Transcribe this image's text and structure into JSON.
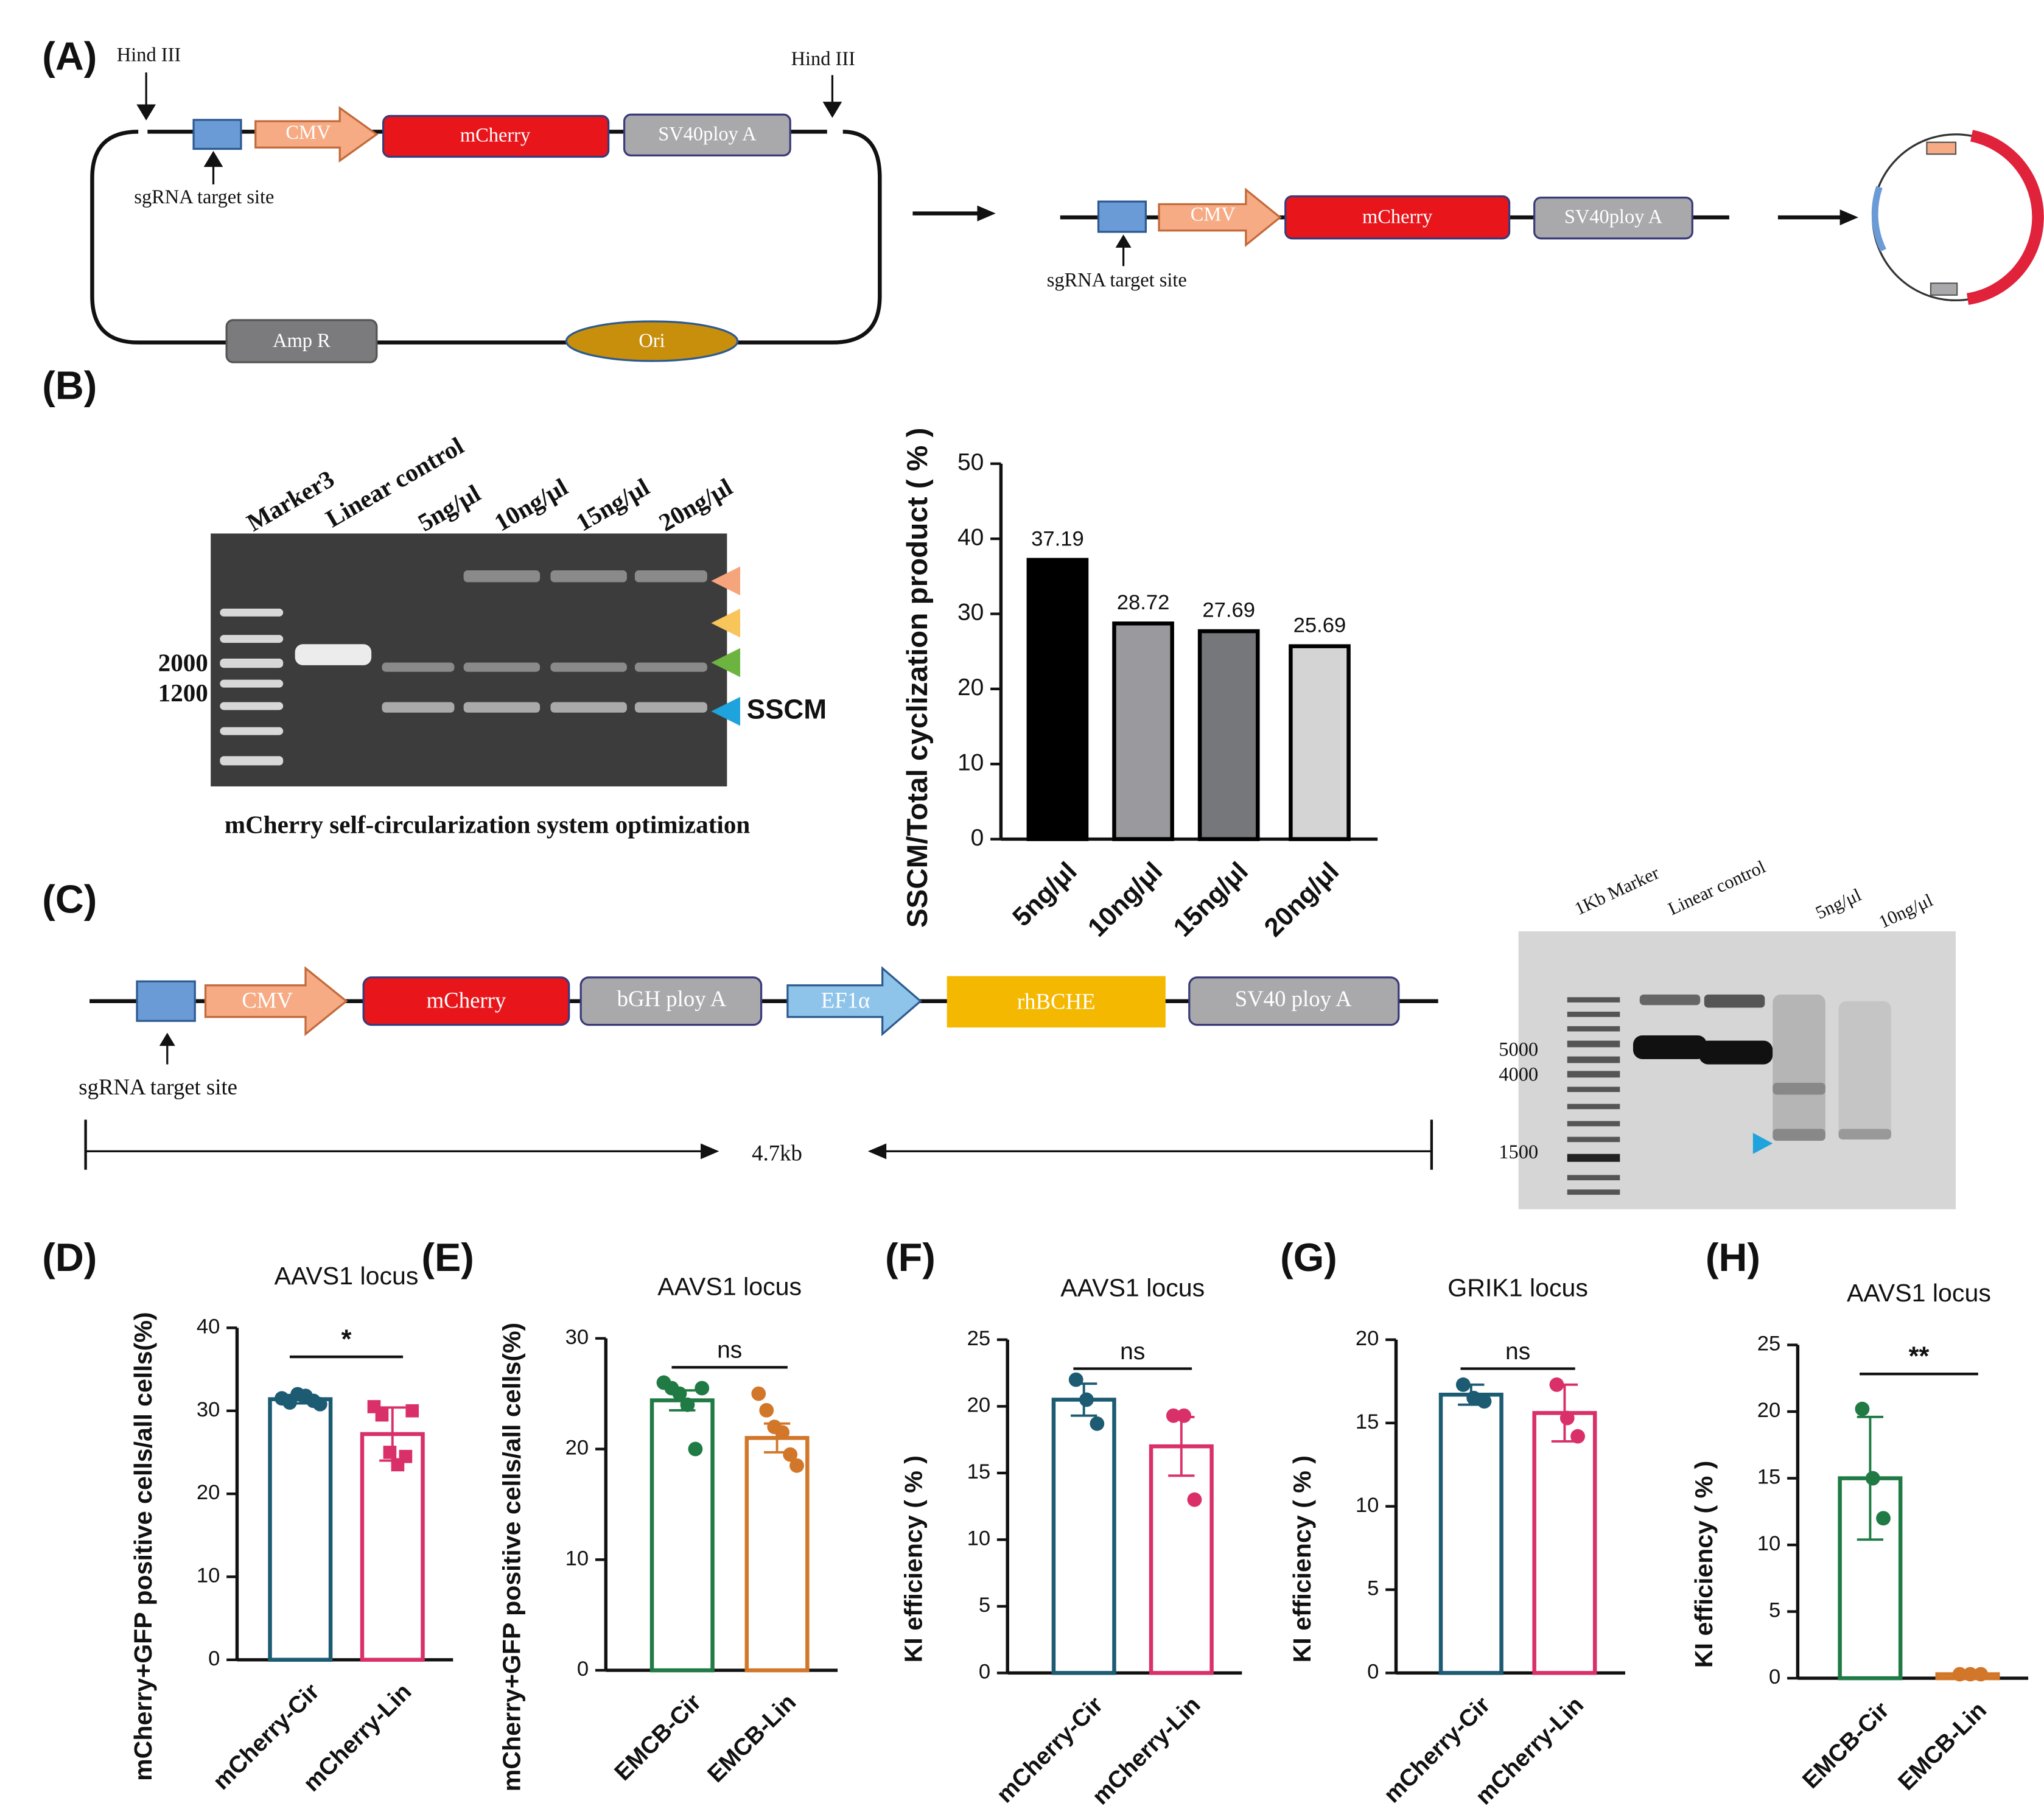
{
  "panel_labels": [
    "(A)",
    "(B)",
    "(C)",
    "(D)",
    "(E)",
    "(F)",
    "(G)",
    "(H)"
  ],
  "diagram_a": {
    "hind_iii_left": "Hind III",
    "hind_iii_right": "Hind III",
    "cmv": "CMV",
    "mcherry": "mCherry",
    "sv40": "SV40ploy A",
    "sgrna": "sgRNA target site",
    "amp_r": "Amp R",
    "ori": "Ori",
    "linear_cmv": "CMV",
    "linear_mcherry": "mCherry",
    "linear_sv40": "SV40ploy A",
    "linear_sgrna": "sgRNA target site"
  },
  "gel_b": {
    "lanes": [
      "Marker3",
      "Linear control",
      "5ng/μl",
      "10ng/μl",
      "15ng/μl",
      "20ng/μl"
    ],
    "markers": [
      "2000",
      "1200"
    ],
    "band_label": "SSCM",
    "caption": "mCherry self-circularization system optimization"
  },
  "construct_c": {
    "elements": [
      "CMV",
      "mCherry",
      "bGH ploy A",
      "EF1α",
      "rhBCHE",
      "SV40 ploy A"
    ],
    "sgrna": "sgRNA target site",
    "length": "4.7kb"
  },
  "gel_c": {
    "lanes": [
      "1Kb Marker",
      "Linear control",
      "5ng/μl",
      "10ng/μl"
    ],
    "markers": [
      "5000",
      "4000",
      "1500"
    ]
  },
  "chart_data": [
    {
      "type": "bar",
      "ylabel": "SSCM/Total cyclization product ( % )",
      "categories": [
        "5ng/μl",
        "10ng/μl",
        "15ng/μl",
        "20ng/μl"
      ],
      "values": [
        37.19,
        28.72,
        27.69,
        25.69
      ],
      "colors": [
        "#000000",
        "#9a9a9e",
        "#75777a",
        "#d4d4d4"
      ],
      "ylim": [
        0,
        50
      ],
      "yticks": [
        0,
        10,
        20,
        30,
        40,
        50
      ]
    },
    {
      "type": "bar",
      "title": "AAVS1 locus",
      "ylabel": "mCherry+GFP positive cells/all cells(%)",
      "categories": [
        "mCherry-Cir",
        "mCherry-Lin"
      ],
      "values": [
        31.4,
        27.2
      ],
      "errors": [
        0.5,
        3.2
      ],
      "points": [
        [
          31.5,
          31,
          32,
          31.8,
          31.2,
          30.8
        ],
        [
          30.5,
          29.5,
          25,
          23.5,
          24.5,
          30
        ]
      ],
      "markers": [
        "circle",
        "square"
      ],
      "colors": [
        "#1d5b73",
        "#d9306a"
      ],
      "significance": "*",
      "ylim": [
        0,
        40
      ],
      "yticks": [
        0,
        10,
        20,
        30,
        40
      ]
    },
    {
      "type": "bar",
      "title": "AAVS1 locus",
      "ylabel": "mCherry+GFP positive cells/all cells(%)",
      "categories": [
        "EMCB-Cir",
        "EMCB-Lin"
      ],
      "values": [
        24.4,
        21
      ],
      "errors": [
        0.9,
        1.3
      ],
      "points": [
        [
          26,
          25.5,
          25,
          24,
          20,
          25.5
        ],
        [
          25,
          23.5,
          22,
          21.5,
          19.5,
          18.5
        ]
      ],
      "colors": [
        "#1f7a44",
        "#d2772a"
      ],
      "significance": "ns",
      "ylim": [
        0,
        30
      ],
      "yticks": [
        0,
        10,
        20,
        30
      ]
    },
    {
      "type": "bar",
      "title": "AAVS1 locus",
      "ylabel": "KI efficiency ( % )",
      "categories": [
        "mCherry-Cir",
        "mCherry-Lin"
      ],
      "values": [
        20.5,
        17
      ],
      "errors": [
        1.2,
        2.2
      ],
      "points": [
        [
          22,
          20.5,
          18.7
        ],
        [
          19.3,
          19.3,
          13
        ]
      ],
      "colors": [
        "#1d5b73",
        "#d9306a"
      ],
      "significance": "ns",
      "ylim": [
        0,
        25
      ],
      "yticks": [
        0,
        5,
        10,
        15,
        20,
        25
      ]
    },
    {
      "type": "bar",
      "title": "GRIK1 locus",
      "ylabel": "KI efficiency ( % )",
      "categories": [
        "mCherry-Cir",
        "mCherry-Lin"
      ],
      "values": [
        16.7,
        15.6
      ],
      "errors": [
        0.6,
        1.7
      ],
      "points": [
        [
          17.3,
          16.5,
          16.3
        ],
        [
          17.3,
          15.3,
          14.2
        ]
      ],
      "colors": [
        "#1d5b73",
        "#d9306a"
      ],
      "significance": "ns",
      "ylim": [
        0,
        20
      ],
      "yticks": [
        0,
        5,
        10,
        15,
        20
      ]
    },
    {
      "type": "bar",
      "title": "AAVS1 locus",
      "ylabel": "KI efficiency ( % )",
      "categories": [
        "EMCB-Cir",
        "EMCB-Lin"
      ],
      "values": [
        15,
        0.3
      ],
      "errors": [
        4.6,
        0.1
      ],
      "points": [
        [
          20.2,
          15,
          12
        ],
        [
          0.3,
          0.3,
          0.3
        ]
      ],
      "colors": [
        "#1f7a44",
        "#d2772a"
      ],
      "significance": "**",
      "ylim": [
        0,
        25
      ],
      "yticks": [
        0,
        5,
        10,
        15,
        20,
        25
      ]
    }
  ]
}
